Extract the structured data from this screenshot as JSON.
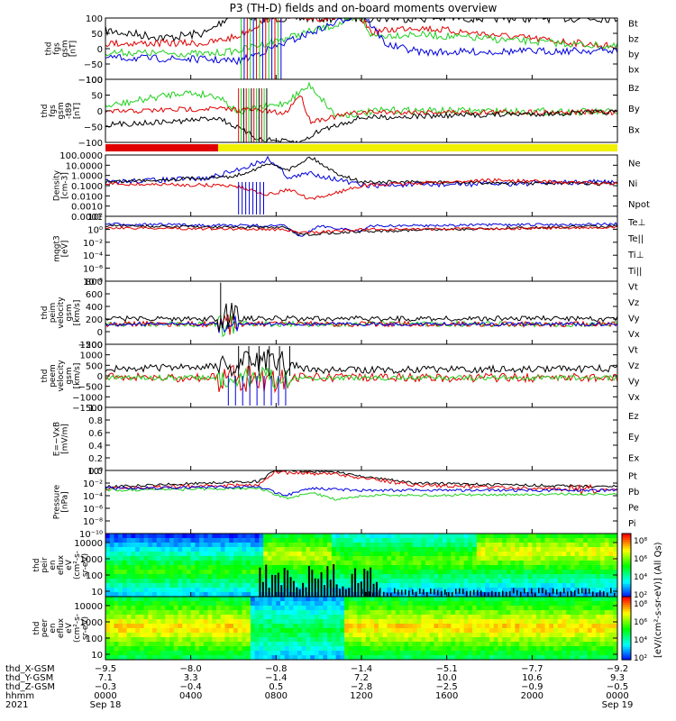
{
  "colors": {
    "black": "#000000",
    "red": "#e00000",
    "green": "#20d020",
    "blue": "#0000dd",
    "yellow": "#f0f000"
  },
  "chart_data": {
    "type": "line",
    "title": "P3 (TH-D) fields and on-board moments overview",
    "panels": [
      {
        "id": "fgs",
        "ylabel": [
          "thd",
          "fgs",
          "gsm",
          "[nT]"
        ],
        "yticks": [
          "100",
          "50",
          "0",
          "−50",
          "−100"
        ],
        "ylim": [
          -100,
          100
        ],
        "legend": [
          {
            "text": "Bt",
            "color": "#000000"
          },
          {
            "text": "bz",
            "color": "#e00000"
          },
          {
            "text": "by",
            "color": "#20d020"
          },
          {
            "text": "bx",
            "color": "#0000dd"
          }
        ]
      },
      {
        "id": "fgs_sub",
        "ylabel": [
          "thd",
          "fgs",
          "gsm",
          "-t89",
          "[nT]"
        ],
        "yticks": [
          "100",
          "50",
          "0",
          "−50",
          "−100"
        ],
        "ylim": [
          -100,
          100
        ],
        "legend": [
          {
            "text": "Bz",
            "color": "#e00000"
          },
          {
            "text": "By",
            "color": "#20d020"
          },
          {
            "text": "Bx",
            "color": "#000000"
          }
        ]
      },
      {
        "id": "density",
        "ylabel": [
          "Density",
          "[cm-3]"
        ],
        "yticks": [
          "100.0000",
          "10.0000",
          "1.0000",
          "0.1000",
          "0.0100",
          "0.0010",
          "0.0001"
        ],
        "ylim": [
          0.0001,
          100
        ],
        "log": true,
        "legend": [
          {
            "text": "Ne",
            "color": "#e00000"
          },
          {
            "text": "Ni",
            "color": "#000000"
          },
          {
            "text": "Npot",
            "color": "#0000dd"
          }
        ]
      },
      {
        "id": "temp",
        "ylabel": [
          "mqgt3",
          "[eV]"
        ],
        "yticks": [
          "10²",
          "10⁰",
          "10⁻²",
          "10⁻⁴",
          "10⁻⁶",
          "10⁻⁸"
        ],
        "log": true,
        "legend": [
          {
            "text": "Te⊥",
            "color": "#e00000"
          },
          {
            "text": "Te||",
            "color": "#000000"
          },
          {
            "text": "Ti⊥",
            "color": "#20d020"
          },
          {
            "text": "Ti||",
            "color": "#20d020"
          }
        ]
      },
      {
        "id": "peim",
        "ylabel": [
          "thd",
          "peim",
          "velocity",
          "gsm",
          "[km/s]"
        ],
        "yticks": [
          "800",
          "600",
          "400",
          "200",
          "0",
          "−200"
        ],
        "ylim": [
          -200,
          800
        ],
        "legend": [
          {
            "text": "Vt",
            "color": "#000000"
          },
          {
            "text": "Vz",
            "color": "#e00000"
          },
          {
            "text": "Vy",
            "color": "#20d020"
          },
          {
            "text": "Vx",
            "color": "#0000dd"
          }
        ]
      },
      {
        "id": "peem",
        "ylabel": [
          "thd",
          "peem",
          "velocity",
          "gsm",
          "[km/s]"
        ],
        "yticks": [
          "1500",
          "1000",
          "500",
          "0",
          "−500",
          "−1000",
          "−1500"
        ],
        "ylim": [
          -1500,
          1500
        ],
        "legend": [
          {
            "text": "Vt",
            "color": "#000000"
          },
          {
            "text": "Vz",
            "color": "#e00000"
          },
          {
            "text": "Vy",
            "color": "#20d020"
          },
          {
            "text": "Vx",
            "color": "#0000dd"
          }
        ]
      },
      {
        "id": "efield",
        "ylabel": [
          "E=−VxB",
          "[mV/m]"
        ],
        "yticks": [
          "1.0",
          "0.8",
          "0.6",
          "0.4",
          "0.2",
          "0.0"
        ],
        "ylim": [
          0,
          1
        ],
        "legend": [
          {
            "text": "Ez",
            "color": "#e00000"
          },
          {
            "text": "Ey",
            "color": "#20d020"
          },
          {
            "text": "Ex",
            "color": "#0000dd"
          }
        ]
      },
      {
        "id": "pressure",
        "ylabel": [
          "Pressure",
          "[nPa]"
        ],
        "yticks": [
          "10⁰",
          "10⁻²",
          "10⁻⁴",
          "10⁻⁶",
          "10⁻⁸",
          "10⁻¹⁰"
        ],
        "log": true,
        "legend": [
          {
            "text": "Pt",
            "color": "#000000"
          },
          {
            "text": "Pb",
            "color": "#e00000"
          },
          {
            "text": "Pe",
            "color": "#20d020"
          },
          {
            "text": "Pi",
            "color": "#0000dd"
          }
        ]
      },
      {
        "id": "peir",
        "ylabel": [
          "thd",
          "peir",
          "en",
          "eflux",
          "eV",
          "(cm²-s-",
          "sr-eV)"
        ],
        "yticks": [
          "10000",
          "1000",
          "100",
          "10"
        ],
        "log": true
      },
      {
        "id": "peer",
        "ylabel": [
          "thd",
          "peer",
          "en",
          "eflux",
          "eV",
          "(cm²-s-",
          "sr-eV)"
        ],
        "yticks": [
          "10000",
          "1000",
          "100",
          "10"
        ],
        "log": true
      }
    ],
    "colorbar": {
      "label": "[eV/(cm²-s-sr-eV)] (All Qs)",
      "ticks_top": [
        "10⁸",
        "10⁶",
        "10⁴",
        "10²"
      ],
      "ticks_bottom": [
        "10⁸",
        "10⁶",
        "10⁴",
        "10²"
      ]
    },
    "x_axis": {
      "rows": [
        {
          "label": "thd_X-GSM",
          "values": [
            "−9.5",
            "−8.0",
            "−0.8",
            "−1.4",
            "−5.1",
            "−7.7",
            "−9.2"
          ]
        },
        {
          "label": "thd_Y-GSM",
          "values": [
            "7.1",
            "3.3",
            "−1.4",
            "7.2",
            "10.0",
            "10.6",
            "9.3"
          ]
        },
        {
          "label": "thd_Z-GSM",
          "values": [
            "−0.3",
            "−0.4",
            "0.5",
            "−2.8",
            "−2.5",
            "−0.9",
            "−0.5"
          ]
        },
        {
          "label": "hhmm",
          "values": [
            "0000",
            "0400",
            "0800",
            "1200",
            "1600",
            "2000",
            "0000"
          ]
        },
        {
          "label": "2021",
          "values": [
            "Sep 18",
            "",
            "",
            "",
            "",
            "",
            "Sep 19"
          ]
        }
      ]
    }
  }
}
